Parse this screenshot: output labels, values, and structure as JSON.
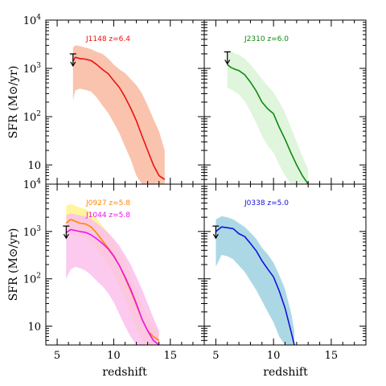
{
  "chart_data": [
    {
      "type": "line",
      "panel": "top-left",
      "xlabel": "",
      "ylabel": "SFR (M⊙/yr)",
      "xlim": [
        4,
        18
      ],
      "ylim": [
        4,
        10000
      ],
      "yscale": "log",
      "x_ticks": [],
      "y_ticks": [
        "10",
        "10²",
        "10³",
        "10⁴"
      ],
      "series": [
        {
          "name": "J1148 z=6.4",
          "color": "#ee1111",
          "band_color": "#f9c3ae",
          "x": [
            6.4,
            6.6,
            7.0,
            7.5,
            8.0,
            8.5,
            9.0,
            9.5,
            10.0,
            10.5,
            11.0,
            11.5,
            12.0,
            12.5,
            13.0,
            13.5,
            14.0,
            14.5
          ],
          "y": [
            1400,
            1700,
            1600,
            1550,
            1450,
            1200,
            950,
            780,
            560,
            400,
            255,
            150,
            82,
            40,
            20,
            10,
            6,
            5
          ],
          "band_low": [
            220,
            350,
            380,
            360,
            330,
            250,
            170,
            120,
            75,
            45,
            24,
            13,
            6,
            4,
            4,
            4,
            4,
            4
          ],
          "band_high": [
            2700,
            3000,
            2900,
            2700,
            2500,
            2200,
            2000,
            1600,
            1200,
            950,
            800,
            600,
            450,
            300,
            170,
            90,
            50,
            20
          ]
        }
      ],
      "upper_limit": {
        "x": 6.4,
        "y": 2000
      }
    },
    {
      "type": "line",
      "panel": "top-right",
      "xlabel": "",
      "ylabel": "",
      "xlim": [
        4,
        18
      ],
      "ylim": [
        4,
        10000
      ],
      "yscale": "log",
      "series": [
        {
          "name": "J2310 z=6.0",
          "color": "#118811",
          "band_color": "#dff5dc",
          "x": [
            6.0,
            6.3,
            6.7,
            7.0,
            7.5,
            8.0,
            8.5,
            9.0,
            9.5,
            10.0,
            10.5,
            11.0,
            11.5,
            12.0,
            12.5,
            13.0
          ],
          "y": [
            1200,
            1050,
            950,
            900,
            740,
            520,
            340,
            200,
            145,
            115,
            60,
            34,
            18,
            10,
            6,
            4
          ],
          "band_low": [
            400,
            370,
            320,
            290,
            210,
            130,
            75,
            40,
            25,
            18,
            10,
            6,
            4,
            4,
            4,
            4
          ],
          "band_high": [
            2400,
            2300,
            2000,
            1900,
            1600,
            1200,
            850,
            600,
            430,
            320,
            200,
            120,
            60,
            30,
            15,
            8
          ]
        }
      ],
      "upper_limit": {
        "x": 6.0,
        "y": 2200
      }
    },
    {
      "type": "line",
      "panel": "bottom-left",
      "xlabel": "redshift",
      "ylabel": "SFR (M⊙/yr)",
      "xlim": [
        4,
        18
      ],
      "ylim": [
        4,
        10000
      ],
      "yscale": "log",
      "x_ticks": [
        "5",
        "10",
        "15"
      ],
      "y_ticks": [
        "10",
        "10²",
        "10³",
        "10⁴"
      ],
      "series": [
        {
          "name": "J0927 z=5.8",
          "color": "#ff8800",
          "band_color": "#fff59d",
          "x": [
            5.8,
            6.2,
            6.6,
            7.0,
            7.5,
            8.0,
            8.5,
            9.0,
            9.5,
            10.0,
            10.5,
            11.0,
            11.5,
            12.0,
            12.5,
            13.0,
            13.5,
            14.0
          ],
          "y": [
            1500,
            1800,
            1650,
            1500,
            1450,
            1250,
            920,
            640,
            450,
            310,
            190,
            105,
            56,
            28,
            14,
            8,
            6,
            5
          ],
          "band_low": [
            800,
            900,
            850,
            800,
            760,
            620,
            430,
            290,
            190,
            125,
            70,
            38,
            18,
            9,
            5,
            4,
            4,
            4
          ],
          "band_high": [
            3500,
            3800,
            3500,
            3200,
            3000,
            2500,
            1900,
            1300,
            950,
            650,
            400,
            230,
            120,
            60,
            30,
            15,
            10,
            7
          ]
        },
        {
          "name": "J1044 z=5.8",
          "color": "#ee11ee",
          "band_color": "#fcc0ec",
          "x": [
            5.8,
            6.2,
            6.6,
            7.0,
            7.5,
            8.0,
            8.5,
            9.0,
            9.5,
            10.0,
            10.5,
            11.0,
            11.5,
            12.0,
            12.5,
            13.0,
            13.5,
            14.0
          ],
          "y": [
            950,
            1100,
            1050,
            1000,
            960,
            850,
            700,
            560,
            430,
            300,
            190,
            110,
            60,
            30,
            14,
            8,
            5,
            4
          ],
          "band_low": [
            100,
            160,
            180,
            170,
            150,
            120,
            90,
            70,
            50,
            32,
            18,
            10,
            6,
            4,
            4,
            4,
            4,
            4
          ],
          "band_high": [
            2200,
            2400,
            2300,
            2200,
            2100,
            1800,
            1500,
            1200,
            950,
            700,
            500,
            320,
            200,
            110,
            60,
            30,
            15,
            8
          ]
        }
      ],
      "upper_limit": {
        "x": 5.8,
        "y": 1300
      }
    },
    {
      "type": "line",
      "panel": "bottom-right",
      "xlabel": "redshift",
      "ylabel": "",
      "xlim": [
        4,
        18
      ],
      "ylim": [
        4,
        10000
      ],
      "yscale": "log",
      "x_ticks": [
        "5",
        "10",
        "15"
      ],
      "series": [
        {
          "name": "J0338 z=5.0",
          "color": "#1111dd",
          "band_color": "#acd8e6",
          "x": [
            5.0,
            5.5,
            6.0,
            6.5,
            7.0,
            7.5,
            8.0,
            8.5,
            9.0,
            9.5,
            10.0,
            10.5,
            11.0,
            11.5,
            11.8
          ],
          "y": [
            1000,
            1250,
            1200,
            1150,
            900,
            780,
            560,
            390,
            240,
            160,
            110,
            55,
            24,
            8,
            4
          ],
          "band_low": [
            180,
            320,
            300,
            260,
            190,
            140,
            90,
            58,
            34,
            20,
            12,
            6,
            4,
            4,
            4
          ],
          "band_high": [
            1800,
            2100,
            2000,
            1800,
            1500,
            1250,
            950,
            700,
            450,
            330,
            220,
            120,
            60,
            20,
            8
          ]
        }
      ],
      "upper_limit": {
        "x": 5.0,
        "y": 1300
      }
    }
  ],
  "colors": {
    "axis": "#000000",
    "background": "#ffffff"
  }
}
